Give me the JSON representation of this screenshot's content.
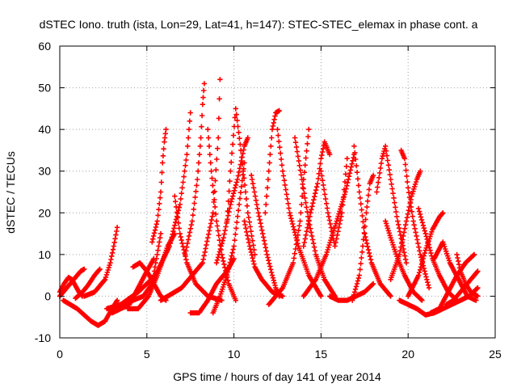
{
  "chart_data": {
    "type": "scatter",
    "title": "dSTEC Iono. truth (ista, Lon=29, Lat=41, h=147): STEC-STEC_elemax in phase cont. a",
    "xlabel": "GPS time / hours of day 141 of year 2014",
    "ylabel": "dSTEC  / TECUs",
    "xlim": [
      0,
      25
    ],
    "ylim": [
      -10,
      60
    ],
    "xticks": [
      0,
      5,
      10,
      15,
      20,
      25
    ],
    "yticks": [
      -10,
      0,
      10,
      20,
      30,
      40,
      50,
      60
    ],
    "grid": true,
    "marker": "plus",
    "color": "#ff0000",
    "series": [
      {
        "x": [
          0,
          0.3,
          0.6,
          0.9,
          1.2,
          1.4
        ],
        "y": [
          0,
          1.5,
          3,
          4.5,
          6,
          6.5
        ]
      },
      {
        "x": [
          0,
          0.25,
          0.5,
          0.7,
          0.9,
          1.1,
          1.3
        ],
        "y": [
          1,
          3,
          4.5,
          4,
          2.5,
          1,
          0
        ]
      },
      {
        "x": [
          0.2,
          1.0,
          1.8,
          2.2,
          2.6,
          3.0,
          3.3
        ],
        "y": [
          -1,
          -3,
          -6,
          -7,
          -6,
          -3,
          -1
        ]
      },
      {
        "x": [
          1.4,
          2.0,
          2.6,
          2.9,
          3.1,
          3.3
        ],
        "y": [
          0,
          1,
          4,
          8,
          12,
          16.5
        ]
      },
      {
        "x": [
          0.9,
          1.3,
          1.6,
          2.0,
          2.3
        ],
        "y": [
          -0.5,
          1,
          2.5,
          5,
          6.5
        ]
      },
      {
        "x": [
          2.7,
          3.5,
          4.2,
          4.8,
          5.3,
          5.8
        ],
        "y": [
          -3,
          -2,
          -1,
          0,
          3,
          15
        ]
      },
      {
        "x": [
          3.0,
          4.0,
          4.5,
          5.0,
          5.4
        ],
        "y": [
          -4,
          -2,
          2,
          6,
          9
        ]
      },
      {
        "x": [
          4.2,
          4.6,
          5.0,
          5.4,
          5.8,
          6.1
        ],
        "y": [
          7,
          8,
          6,
          3,
          0,
          -1
        ]
      },
      {
        "x": [
          5.3,
          5.6,
          5.8,
          5.9,
          6.0,
          6.1
        ],
        "y": [
          13,
          18,
          25,
          32,
          37,
          40
        ]
      },
      {
        "x": [
          3.9,
          4.5,
          5.1,
          5.6,
          6.2,
          6.6
        ],
        "y": [
          -3,
          -3,
          0,
          5,
          12,
          15
        ]
      },
      {
        "x": [
          3.5,
          4.5,
          5.5,
          6.3,
          6.9,
          7.3,
          7.5
        ],
        "y": [
          -2,
          1,
          5,
          12,
          22,
          34,
          44
        ]
      },
      {
        "x": [
          6.6,
          6.9,
          7.3,
          7.8,
          8.5,
          9.3
        ],
        "y": [
          24,
          15,
          8,
          3,
          0,
          -1
        ]
      },
      {
        "x": [
          7.2,
          7.6,
          7.9,
          8.1,
          8.2,
          8.3
        ],
        "y": [
          10,
          18,
          28,
          38,
          46,
          51
        ]
      },
      {
        "x": [
          5.8,
          7.0,
          8.2,
          8.8,
          9.1,
          9.2
        ],
        "y": [
          -1,
          2,
          8,
          20,
          38,
          52
        ]
      },
      {
        "x": [
          8.5,
          8.7,
          9.0,
          9.3,
          9.7,
          10.1
        ],
        "y": [
          40,
          30,
          18,
          10,
          3,
          -1
        ]
      },
      {
        "x": [
          7.5,
          8.0,
          8.5,
          9.0,
          9.6,
          10.0
        ],
        "y": [
          -4,
          -4,
          -1,
          3,
          6,
          9
        ]
      },
      {
        "x": [
          8.8,
          9.2,
          9.6,
          10.0,
          10.3,
          10.6
        ],
        "y": [
          -4,
          0,
          5,
          12,
          22,
          32
        ]
      },
      {
        "x": [
          9.6,
          9.8,
          10.1,
          10.4,
          10.8,
          11.2
        ],
        "y": [
          18,
          30,
          45,
          35,
          20,
          10
        ]
      },
      {
        "x": [
          9.0,
          9.4,
          9.8,
          10.2,
          10.6,
          10.8
        ],
        "y": [
          8,
          14,
          22,
          28,
          36,
          38
        ]
      },
      {
        "x": [
          10.6,
          10.9,
          11.2,
          11.6,
          12.2,
          12.8
        ],
        "y": [
          18,
          12,
          7,
          4,
          1,
          0
        ]
      },
      {
        "x": [
          11.0,
          11.4,
          11.9,
          12.2,
          12.4,
          12.6
        ],
        "y": [
          29,
          20,
          10,
          5,
          2,
          0
        ]
      },
      {
        "x": [
          11.8,
          12.0,
          12.2,
          12.4,
          12.6
        ],
        "y": [
          20,
          30,
          40,
          44,
          44.5
        ]
      },
      {
        "x": [
          12.5,
          12.8,
          13.2,
          13.7,
          14.3,
          15.0
        ],
        "y": [
          40,
          30,
          20,
          12,
          5,
          0
        ]
      },
      {
        "x": [
          12.0,
          12.8,
          13.4,
          13.8,
          14.0,
          14.3
        ],
        "y": [
          -2,
          2,
          8,
          18,
          28,
          40
        ]
      },
      {
        "x": [
          13.5,
          13.9,
          14.3,
          14.7,
          15.2,
          15.8
        ],
        "y": [
          38,
          28,
          18,
          10,
          4,
          0
        ]
      },
      {
        "x": [
          14.0,
          14.4,
          14.8,
          15.0,
          15.2,
          15.5
        ],
        "y": [
          12,
          20,
          27,
          33,
          37,
          34
        ]
      },
      {
        "x": [
          15.0,
          15.4,
          15.8,
          16.2,
          16.5
        ],
        "y": [
          30,
          20,
          12,
          20,
          33
        ]
      },
      {
        "x": [
          14.0,
          14.7,
          15.3,
          15.9,
          16.4,
          16.9
        ],
        "y": [
          0,
          4,
          10,
          18,
          25,
          34
        ]
      },
      {
        "x": [
          15.5,
          16.0,
          16.5,
          17.0,
          17.5,
          18.0
        ],
        "y": [
          0,
          -1,
          -1,
          0,
          1,
          3
        ]
      },
      {
        "x": [
          16.9,
          17.2,
          17.5,
          17.9,
          18.4,
          19.0
        ],
        "y": [
          36,
          25,
          15,
          8,
          3,
          0
        ]
      },
      {
        "x": [
          16.8,
          17.2,
          17.4,
          17.6,
          17.8,
          18.0
        ],
        "y": [
          -1,
          5,
          12,
          20,
          27,
          29
        ]
      },
      {
        "x": [
          18.2,
          18.5,
          18.7,
          19.0,
          19.4,
          19.9
        ],
        "y": [
          25,
          33,
          36,
          28,
          18,
          8
        ]
      },
      {
        "x": [
          18.7,
          19.0,
          19.4,
          19.8,
          20.3,
          20.8
        ],
        "y": [
          18,
          14,
          9,
          5,
          1,
          -1
        ]
      },
      {
        "x": [
          19.6,
          19.8,
          20.0,
          20.3,
          20.7,
          21.2
        ],
        "y": [
          35,
          33,
          26,
          18,
          10,
          2
        ]
      },
      {
        "x": [
          19.0,
          19.5,
          19.9,
          20.2,
          20.5,
          20.7
        ],
        "y": [
          4,
          10,
          18,
          24,
          28,
          30
        ]
      },
      {
        "x": [
          20.6,
          21.0,
          21.4,
          21.8,
          22.3,
          22.8
        ],
        "y": [
          21,
          15,
          9,
          5,
          1,
          -1
        ]
      },
      {
        "x": [
          20.0,
          20.6,
          21.0,
          21.4,
          21.8,
          22.0
        ],
        "y": [
          0,
          5,
          11,
          16,
          19,
          20
        ]
      },
      {
        "x": [
          21.3,
          21.8,
          22.3,
          22.8,
          23.3,
          23.8
        ],
        "y": [
          -4,
          -3,
          1,
          5,
          8,
          10
        ]
      },
      {
        "x": [
          21.5,
          22.0,
          22.4,
          22.9,
          23.4,
          23.9
        ],
        "y": [
          9,
          13,
          8,
          4,
          0,
          -1
        ]
      },
      {
        "x": [
          22.8,
          23.0,
          23.3,
          23.6,
          24.0
        ],
        "y": [
          10,
          6,
          3,
          1,
          0
        ]
      },
      {
        "x": [
          19.5,
          20.5,
          21.0,
          21.5,
          22.5,
          23.5,
          24.0
        ],
        "y": [
          -1,
          -3,
          -4.5,
          -4,
          -2,
          0,
          2
        ]
      },
      {
        "x": [
          22.2,
          22.6,
          23.0,
          23.4,
          23.8,
          24.0
        ],
        "y": [
          -2,
          -1,
          1,
          3,
          5,
          6
        ]
      }
    ]
  }
}
